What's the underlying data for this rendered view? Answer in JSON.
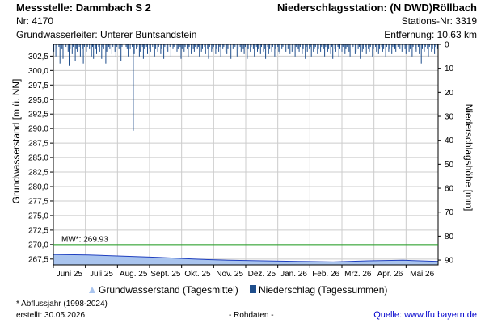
{
  "header": {
    "messstelle": "Messstelle: Dammbach S 2",
    "nr": "Nr: 4170",
    "grundwasserleiter": "Grundwasserleiter:   Unterer Buntsandstein",
    "station": "Niederschlagsstation: (N DWD)Röllbach",
    "stations_nr": "Stations-Nr: 3319",
    "entfernung": "Entfernung: 10.63 km"
  },
  "legend": {
    "gw_label": "Grundwasserstand (Tagesmittel)",
    "ns_label": "Niederschlag (Tagessummen)"
  },
  "footer": {
    "note": "* Abflussjahr (1998-2024)",
    "erstellt": "erstellt:  30.05.2026",
    "rohdaten": "- Rohdaten -",
    "quelle_label": "Quelle: ",
    "quelle_url": "www.lfu.bayern.de"
  },
  "colors": {
    "groundwater_fill": "#a9c4ee",
    "groundwater_line": "#1f3fbf",
    "precip": "#1f4e8c",
    "mw_line": "#1c9c1c",
    "grid": "#cccccc"
  },
  "chart_data": {
    "type": "area",
    "ylabel": "Grundwasserstand [m ü. NN]",
    "y2label": "Niederschlagshöhe [mm]",
    "ylim": [
      266.5,
      304.5
    ],
    "y_ticks": [
      "302,5",
      "300,0",
      "297,5",
      "295,0",
      "292,5",
      "290,0",
      "287,5",
      "285,0",
      "282,5",
      "280,0",
      "277,5",
      "275,0",
      "272,5",
      "270,0",
      "267,5"
    ],
    "y2lim": [
      0,
      92
    ],
    "y2_ticks": [
      "0",
      "10",
      "20",
      "30",
      "40",
      "50",
      "60",
      "70",
      "80",
      "90"
    ],
    "x_ticks": [
      "Juni 25",
      "Juli 25",
      "Aug. 25",
      "Sept. 25",
      "Okt. 25",
      "Nov. 25",
      "Dez. 25",
      "Jan. 26",
      "Feb. 26",
      "Mrz. 26",
      "Apr. 26",
      "Mai 26"
    ],
    "mw": {
      "label": "MW*: 269.93",
      "value": 269.93
    },
    "groundwater_series": {
      "name": "Grundwasserstand (Tagesmittel)",
      "values": [
        268.3,
        268.2,
        268.0,
        267.8,
        267.5,
        267.3,
        267.2,
        267.1,
        267.0,
        267.2,
        267.3,
        267.1
      ]
    },
    "precip_series": {
      "name": "Niederschlag (Tagessummen)",
      "values": [
        3,
        0,
        5,
        2,
        0,
        1,
        8,
        0,
        2,
        6,
        0,
        4,
        1,
        0,
        3,
        9,
        2,
        0,
        4,
        1,
        0,
        7,
        2,
        3,
        0,
        1,
        5,
        0,
        2,
        8,
        1,
        0,
        3,
        1,
        0,
        2,
        0,
        5,
        1,
        6,
        0,
        2,
        4,
        0,
        1,
        3,
        0,
        6,
        1,
        2,
        0,
        8,
        3,
        0,
        1,
        2,
        0,
        4,
        1,
        0,
        3,
        5,
        1,
        0,
        2,
        0,
        7,
        1,
        0,
        3,
        0,
        1,
        2,
        5,
        0,
        2,
        0,
        1,
        36,
        4,
        0,
        2,
        1,
        0,
        5,
        3,
        0,
        1,
        6,
        2,
        0,
        1,
        4,
        0,
        2,
        3,
        0,
        1,
        0,
        5,
        2,
        0,
        3,
        1,
        0,
        4,
        2,
        0,
        6,
        1,
        0,
        2,
        3,
        0,
        1,
        5,
        0,
        2,
        1,
        4,
        0,
        3,
        2,
        0,
        1,
        6,
        2,
        0,
        3,
        1,
        0,
        2,
        5,
        1,
        0,
        4,
        0,
        2,
        3,
        1,
        0,
        2,
        1,
        5,
        0,
        3,
        2,
        0,
        1,
        4,
        0,
        2,
        6,
        1,
        0,
        3,
        2,
        1,
        0,
        4,
        2,
        0,
        3,
        1,
        5,
        0,
        2,
        1,
        0,
        3,
        4,
        2,
        0,
        1,
        6,
        0,
        2,
        3,
        1,
        0,
        5,
        2,
        0,
        1,
        3,
        0,
        2,
        4,
        1,
        0,
        6,
        2,
        0,
        3,
        1,
        0,
        2,
        5,
        0,
        1,
        3,
        2,
        0,
        4,
        1,
        0,
        3,
        2,
        6,
        0,
        1,
        4,
        2,
        0,
        3,
        1,
        0,
        5,
        2,
        0,
        1,
        3,
        4,
        0,
        2,
        1,
        0,
        6,
        3,
        0,
        2,
        1,
        4,
        0,
        3,
        2,
        0,
        5,
        1,
        0,
        2,
        3,
        1,
        0,
        4,
        2,
        0,
        6,
        1,
        3,
        0,
        2,
        1,
        5,
        0,
        3,
        2,
        1,
        0,
        4,
        2,
        0,
        3,
        1,
        0,
        2,
        5,
        1,
        0,
        3,
        2,
        0,
        4,
        1,
        6,
        0,
        2,
        3,
        0,
        1,
        5,
        2,
        0,
        3,
        1,
        0,
        4,
        2,
        1,
        0,
        3,
        5,
        0,
        2,
        1,
        0,
        4,
        3,
        0,
        2,
        1,
        6,
        0,
        3,
        2,
        0,
        1,
        4,
        0,
        2,
        3,
        1,
        0,
        5,
        2,
        0,
        1,
        3,
        0,
        4,
        2,
        0,
        1,
        3,
        2,
        0,
        5,
        1,
        0,
        3,
        2,
        0,
        4,
        1,
        0,
        2,
        3,
        0,
        1,
        6,
        2,
        0,
        3,
        1,
        0,
        2,
        4,
        1,
        0,
        3,
        2,
        0,
        5,
        1,
        0,
        2,
        3,
        0,
        1,
        4,
        0,
        8,
        2,
        0,
        3,
        1,
        0,
        2,
        5,
        1,
        0,
        3,
        2,
        0,
        4,
        1,
        0,
        2
      ]
    }
  }
}
